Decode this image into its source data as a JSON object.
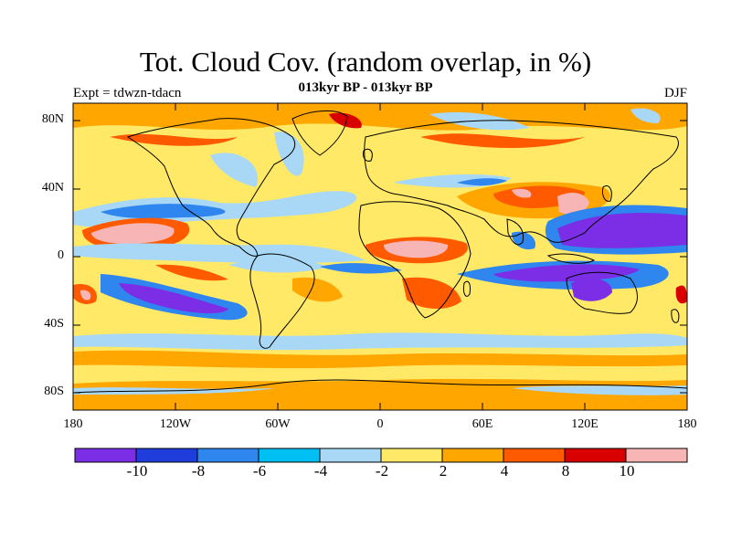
{
  "title": "Tot. Cloud Cov. (random overlap, in %)",
  "subtitle": "013kyr BP - 013kyr BP",
  "experiment": "Expt = tdwzn-tdacn",
  "season": "DJF",
  "lat_labels": [
    "80N",
    "40N",
    "0",
    "40S",
    "80S"
  ],
  "lon_labels": [
    "180",
    "120W",
    "60W",
    "0",
    "60E",
    "120E",
    "180"
  ],
  "colorbar": {
    "levels": [
      "-10",
      "-8",
      "-6",
      "-4",
      "-2",
      "2",
      "4",
      "8",
      "10"
    ],
    "colors": [
      "#7b2ee6",
      "#1e3ddb",
      "#2f86ee",
      "#00bff2",
      "#a8d8f6",
      "#ffe966",
      "#ffa600",
      "#ff5a00",
      "#d80000",
      "#f7b5b6"
    ]
  },
  "colors": {
    "background": "#ffe966",
    "coastline": "#000000"
  }
}
